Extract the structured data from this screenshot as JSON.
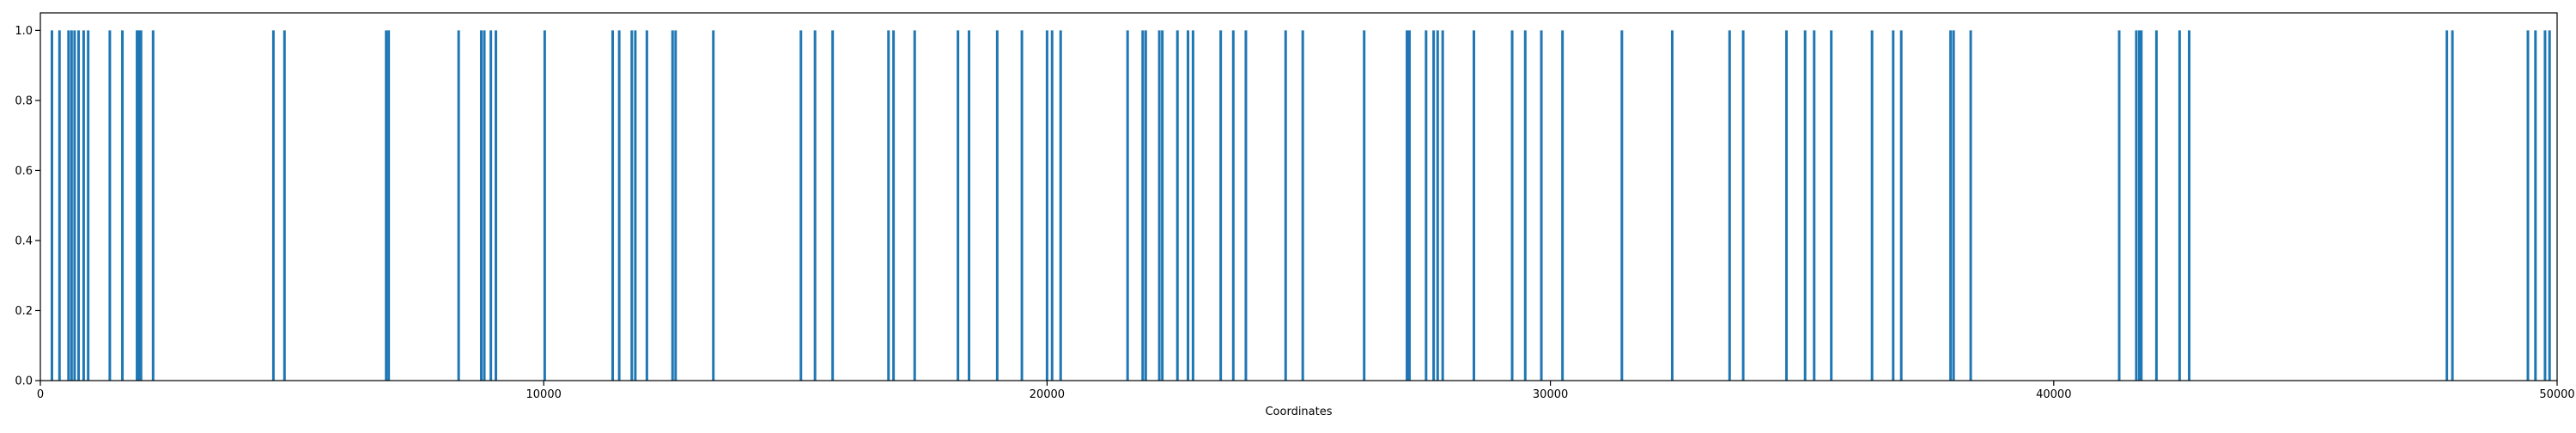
{
  "chart_data": {
    "type": "bar",
    "title": "",
    "xlabel": "Coordinates",
    "ylabel": "",
    "xlim": [
      0,
      50000
    ],
    "ylim": [
      0,
      1.05
    ],
    "grid": false,
    "legend": "none",
    "bar_color": "#1f77b4",
    "axis_color": "#000000",
    "xticks": [
      0,
      10000,
      20000,
      30000,
      40000,
      50000
    ],
    "xtick_labels": [
      "0",
      "10000",
      "20000",
      "30000",
      "40000",
      "50000"
    ],
    "yticks": [
      0.0,
      0.2,
      0.4,
      0.6,
      0.8,
      1.0
    ],
    "ytick_labels": [
      "0.0",
      "0.2",
      "0.4",
      "0.6",
      "0.8",
      "1.0"
    ],
    "bar_value": 1.0,
    "x": [
      230,
      380,
      560,
      620,
      680,
      760,
      860,
      950,
      1380,
      1630,
      1920,
      1960,
      2000,
      2240,
      4630,
      4850,
      6870,
      6920,
      8310,
      8760,
      8820,
      8950,
      9050,
      10020,
      11370,
      11500,
      11750,
      11820,
      12050,
      12560,
      12620,
      13370,
      15110,
      15390,
      15740,
      16850,
      16950,
      17370,
      18230,
      18450,
      19010,
      19500,
      20000,
      20100,
      20270,
      21600,
      21900,
      21960,
      22230,
      22290,
      22590,
      22800,
      22900,
      23450,
      23700,
      23950,
      24740,
      25080,
      26300,
      27150,
      27200,
      27530,
      27680,
      27760,
      27860,
      28480,
      29240,
      29500,
      29820,
      30240,
      31420,
      32420,
      33560,
      33830,
      34690,
      35060,
      35240,
      35580,
      36390,
      36810,
      36970,
      37950,
      38010,
      38350,
      41300,
      41640,
      41700,
      41740,
      42040,
      42500,
      42690,
      47810,
      47920,
      49420,
      49570,
      49760,
      49850
    ]
  }
}
